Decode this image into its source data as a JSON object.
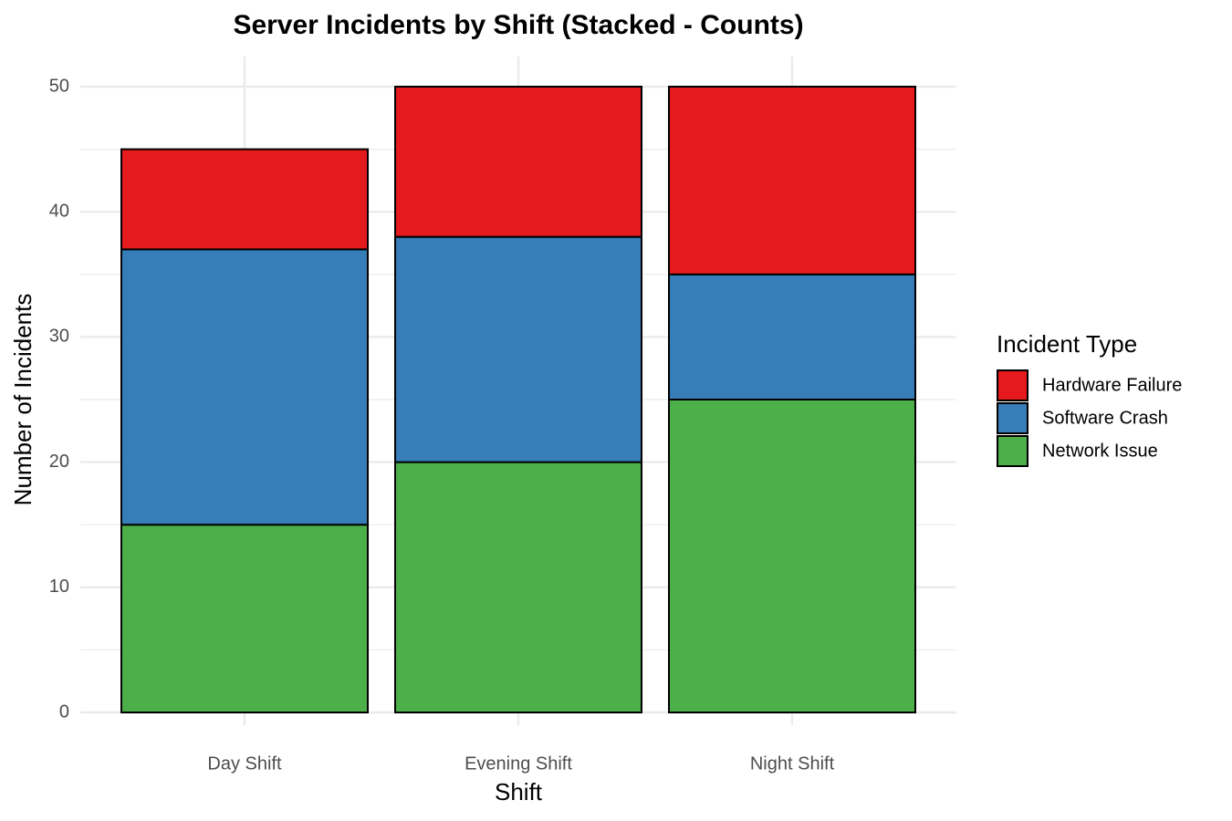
{
  "chart_data": {
    "type": "stacked_bar",
    "title": "Server Incidents by Shift (Stacked - Counts)",
    "x_label": "Shift",
    "y_label": "Number of Incidents",
    "categories": [
      "Day Shift",
      "Evening Shift",
      "Night Shift"
    ],
    "series": [
      {
        "name": "Hardware Failure",
        "color": "#e41a1c",
        "values": [
          8,
          12,
          15
        ]
      },
      {
        "name": "Software Crash",
        "color": "#377eb8",
        "values": [
          22,
          18,
          10
        ]
      },
      {
        "name": "Network Issue",
        "color": "#4daf4a",
        "values": [
          15,
          20,
          25
        ]
      }
    ],
    "legend_title": "Incident Type",
    "legend": "right",
    "ylim": [
      0,
      50
    ],
    "yticks": [
      0,
      10,
      20,
      30,
      40,
      50
    ],
    "grid": true
  }
}
